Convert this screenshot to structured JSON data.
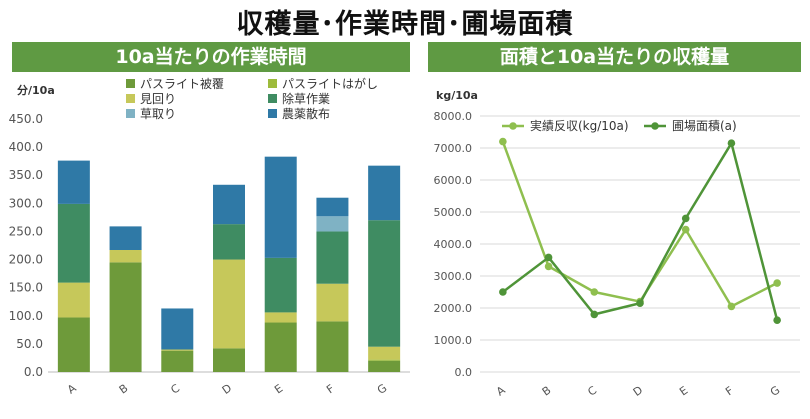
{
  "main_title": "収穫量･作業時間･圃場面積",
  "chart_data": [
    {
      "type": "bar",
      "stacked": true,
      "title": "10a当たりの作業時間",
      "ylabel": "分/10a",
      "xlabel": "",
      "categories": [
        "A",
        "B",
        "C",
        "D",
        "E",
        "F",
        "G"
      ],
      "ylim": [
        0,
        450
      ],
      "yticks": [
        "0.0",
        "50.0",
        "100.0",
        "150.0",
        "200.0",
        "250.0",
        "300.0",
        "350.0",
        "400.0",
        "450.0"
      ],
      "grid": false,
      "legend_position": "top",
      "series": [
        {
          "name": "パスライト被覆",
          "color": "#6e9a3a",
          "values": [
            97,
            195,
            38,
            42,
            88,
            90,
            20
          ]
        },
        {
          "name": "パスライトはがし",
          "color": "#9dbb3c",
          "values": [
            0,
            0,
            0,
            0,
            0,
            0,
            2
          ]
        },
        {
          "name": "見回り",
          "color": "#c6c85a",
          "values": [
            62,
            22,
            2,
            158,
            18,
            67,
            23
          ]
        },
        {
          "name": "除草作業",
          "color": "#3f8c62",
          "values": [
            140,
            0,
            0,
            63,
            97,
            93,
            225
          ]
        },
        {
          "name": "草取り",
          "color": "#7fb2c4",
          "values": [
            0,
            0,
            0,
            0,
            0,
            27,
            0
          ]
        },
        {
          "name": "農薬散布",
          "color": "#2f79a6",
          "values": [
            77,
            42,
            73,
            70,
            180,
            33,
            97
          ]
        }
      ]
    },
    {
      "type": "line",
      "title": "面積と10a当たりの収穫量",
      "ylabel": "kg/10a",
      "xlabel": "",
      "categories": [
        "A",
        "B",
        "C",
        "D",
        "E",
        "F",
        "G"
      ],
      "ylim": [
        0,
        8000
      ],
      "yticks": [
        "0.0",
        "1000.0",
        "2000.0",
        "3000.0",
        "4000.0",
        "5000.0",
        "6000.0",
        "7000.0",
        "8000.0"
      ],
      "grid": true,
      "legend_position": "top",
      "series": [
        {
          "name": "実績反収(kg/10a)",
          "color": "#8fbf4f",
          "values": [
            7200,
            3300,
            2500,
            2200,
            4450,
            2050,
            2780
          ]
        },
        {
          "name": "圃場面積(a)",
          "color": "#4f9438",
          "values": [
            2500,
            3580,
            1800,
            2150,
            4800,
            7150,
            1620
          ]
        }
      ]
    }
  ]
}
